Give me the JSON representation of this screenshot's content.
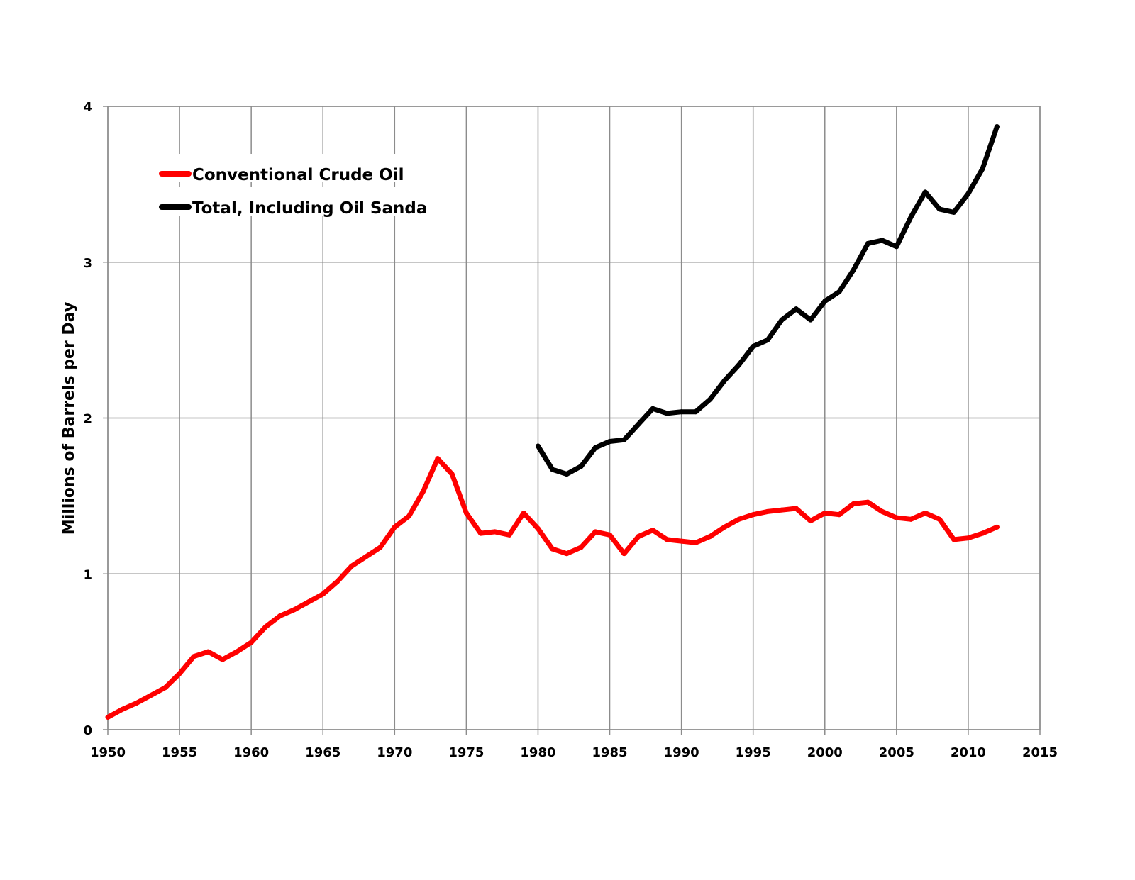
{
  "chart_data": {
    "type": "line",
    "title": "",
    "xlabel": "",
    "ylabel": "Millions of Barrels per Day",
    "xlim": [
      1950,
      2015
    ],
    "ylim": [
      0,
      4
    ],
    "x_ticks": [
      1950,
      1955,
      1960,
      1965,
      1970,
      1975,
      1980,
      1985,
      1990,
      1995,
      2000,
      2005,
      2010,
      2015
    ],
    "y_ticks": [
      0,
      1,
      2,
      3,
      4
    ],
    "grid": true,
    "legend": {
      "placement": "top-left"
    },
    "series": [
      {
        "name": "Conventional Crude Oil",
        "color": "#ff0000",
        "x": [
          1950,
          1951,
          1952,
          1953,
          1954,
          1955,
          1956,
          1957,
          1958,
          1959,
          1960,
          1961,
          1962,
          1963,
          1964,
          1965,
          1966,
          1967,
          1968,
          1969,
          1970,
          1971,
          1972,
          1973,
          1974,
          1975,
          1976,
          1977,
          1978,
          1979,
          1980,
          1981,
          1982,
          1983,
          1984,
          1985,
          1986,
          1987,
          1988,
          1989,
          1990,
          1991,
          1992,
          1993,
          1994,
          1995,
          1996,
          1997,
          1998,
          1999,
          2000,
          2001,
          2002,
          2003,
          2004,
          2005,
          2006,
          2007,
          2008,
          2009,
          2010,
          2011,
          2012
        ],
        "y": [
          0.08,
          0.13,
          0.17,
          0.22,
          0.27,
          0.36,
          0.47,
          0.5,
          0.45,
          0.5,
          0.56,
          0.66,
          0.73,
          0.77,
          0.82,
          0.87,
          0.95,
          1.05,
          1.11,
          1.17,
          1.3,
          1.37,
          1.53,
          1.74,
          1.64,
          1.39,
          1.26,
          1.27,
          1.25,
          1.39,
          1.29,
          1.16,
          1.13,
          1.17,
          1.27,
          1.25,
          1.13,
          1.24,
          1.28,
          1.22,
          1.21,
          1.2,
          1.24,
          1.3,
          1.35,
          1.38,
          1.4,
          1.41,
          1.42,
          1.34,
          1.39,
          1.38,
          1.45,
          1.46,
          1.4,
          1.36,
          1.35,
          1.39,
          1.35,
          1.22,
          1.23,
          1.26,
          1.3
        ]
      },
      {
        "name": "Total, Including Oil Sanda",
        "color": "#000000",
        "x": [
          1980,
          1981,
          1982,
          1983,
          1984,
          1985,
          1986,
          1987,
          1988,
          1989,
          1990,
          1991,
          1992,
          1993,
          1994,
          1995,
          1996,
          1997,
          1998,
          1999,
          2000,
          2001,
          2002,
          2003,
          2004,
          2005,
          2006,
          2007,
          2008,
          2009,
          2010,
          2011,
          2012
        ],
        "y": [
          1.82,
          1.67,
          1.64,
          1.69,
          1.81,
          1.85,
          1.86,
          1.96,
          2.06,
          2.03,
          2.04,
          2.04,
          2.12,
          2.24,
          2.34,
          2.46,
          2.5,
          2.63,
          2.7,
          2.63,
          2.75,
          2.81,
          2.95,
          3.12,
          3.14,
          3.1,
          3.29,
          3.45,
          3.34,
          3.32,
          3.44,
          3.6,
          3.87
        ]
      }
    ]
  }
}
